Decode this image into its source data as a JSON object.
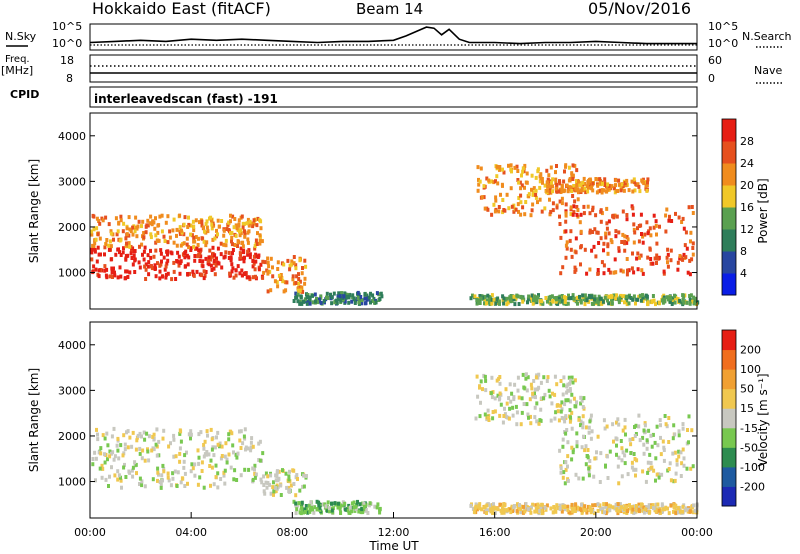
{
  "header": {
    "title": "Hokkaido East (fitACF)",
    "beam": "Beam 14",
    "date": "05/Nov/2016"
  },
  "sidebar_labels": {
    "nsky": "N.Sky",
    "freq": "Freq.",
    "freq_unit": "[MHz]",
    "cpid": "CPID",
    "nsearch": "N.Search",
    "nave": "Nave"
  },
  "cpid_text": "interleavedscan (fast) -191",
  "chart_data": [
    {
      "type": "line",
      "name": "noise",
      "left_ticks": [
        "10^5",
        "10^0"
      ],
      "right_ticks": [
        "10^5",
        "10^0"
      ],
      "x_hours": [
        0,
        1,
        2,
        3,
        4,
        5,
        6,
        7,
        8,
        9,
        10,
        11,
        12,
        12.5,
        13,
        13.3,
        13.6,
        13.9,
        14.2,
        14.6,
        15,
        16,
        17,
        18,
        19,
        20,
        21,
        22,
        23,
        24
      ],
      "y_frac": [
        0.25,
        0.3,
        0.35,
        0.3,
        0.4,
        0.35,
        0.4,
        0.35,
        0.3,
        0.25,
        0.3,
        0.3,
        0.35,
        0.55,
        0.8,
        0.95,
        0.9,
        0.6,
        0.85,
        0.4,
        0.25,
        0.25,
        0.2,
        0.25,
        0.25,
        0.3,
        0.25,
        0.2,
        0.2,
        0.2
      ]
    },
    {
      "type": "line",
      "name": "frequency",
      "left_ticks": [
        "18",
        "8"
      ],
      "right_ticks": [
        "60",
        "0"
      ]
    },
    {
      "type": "heatmap",
      "name": "power",
      "ylabel": "Slant Range [km]",
      "y_ticks": [
        1000,
        2000,
        3000,
        4000
      ],
      "ylim": [
        200,
        4500
      ],
      "xlim": [
        0,
        24
      ],
      "colorbar_label": "Power [dB]",
      "colorbar_ticks": [
        "4",
        "8",
        "12",
        "16",
        "20",
        "24",
        "28"
      ],
      "colorbar_colors": [
        "#0a1ee6",
        "#2846a0",
        "#2e7d5a",
        "#5aa050",
        "#f0c828",
        "#f08c1e",
        "#e6501e",
        "#e61e14"
      ],
      "bands": [
        {
          "x0": 0,
          "x1": 6.8,
          "y0": 900,
          "y1": 1600,
          "level": 7
        },
        {
          "x0": 0,
          "x1": 6.8,
          "y0": 1600,
          "y1": 2300,
          "level": 5
        },
        {
          "x0": 6.8,
          "x1": 8.5,
          "y0": 600,
          "y1": 1400,
          "level": 5
        },
        {
          "x0": 8.0,
          "x1": 11.5,
          "y0": 350,
          "y1": 600,
          "level": 2
        },
        {
          "x0": 15.0,
          "x1": 24,
          "y0": 350,
          "y1": 550,
          "level": 3
        },
        {
          "x0": 15.2,
          "x1": 19.5,
          "y0": 2300,
          "y1": 3400,
          "level": 5
        },
        {
          "x0": 18.5,
          "x1": 23.8,
          "y0": 1000,
          "y1": 2500,
          "level": 6
        },
        {
          "x0": 18.0,
          "x1": 22.0,
          "y0": 2800,
          "y1": 3100,
          "level": 5
        }
      ]
    },
    {
      "type": "heatmap",
      "name": "velocity",
      "ylabel": "Slant Range [km]",
      "y_ticks": [
        1000,
        2000,
        3000,
        4000
      ],
      "ylim": [
        200,
        4500
      ],
      "xlim": [
        0,
        24
      ],
      "x_ticks": [
        "00:00",
        "04:00",
        "08:00",
        "12:00",
        "16:00",
        "20:00",
        "00:00"
      ],
      "xlabel": "Time UT",
      "colorbar_label": "Velocity [m s⁻¹]",
      "colorbar_ticks": [
        "200",
        "100",
        "50",
        "15",
        "-15",
        "-50",
        "-100",
        "-200"
      ],
      "colorbar_colors": [
        "#1c2ab4",
        "#1e5aa0",
        "#2d8c50",
        "#78c850",
        "#c8c8c0",
        "#f0c850",
        "#f0a032",
        "#f06e1e",
        "#e61e14"
      ],
      "bands": [
        {
          "x0": 0,
          "x1": 6.8,
          "y0": 900,
          "y1": 2200,
          "level": 4
        },
        {
          "x0": 6.8,
          "x1": 8.5,
          "y0": 700,
          "y1": 1300,
          "level": 4
        },
        {
          "x0": 8.0,
          "x1": 11.5,
          "y0": 350,
          "y1": 600,
          "level": 3
        },
        {
          "x0": 15.0,
          "x1": 24,
          "y0": 350,
          "y1": 550,
          "level": 5
        },
        {
          "x0": 15.2,
          "x1": 19.5,
          "y0": 2300,
          "y1": 3400,
          "level": 4
        },
        {
          "x0": 18.5,
          "x1": 23.8,
          "y0": 1000,
          "y1": 2500,
          "level": 4
        }
      ]
    }
  ]
}
